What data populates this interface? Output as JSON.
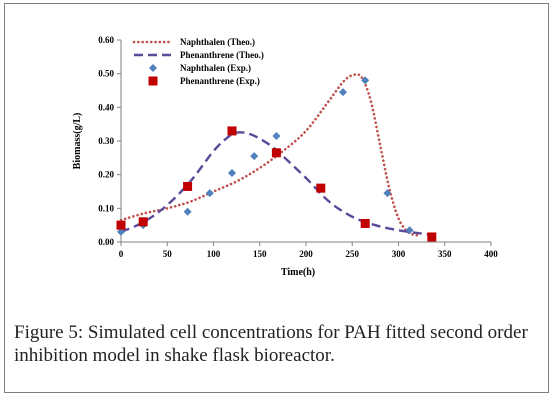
{
  "chart_data": {
    "type": "line",
    "xlabel": "Time(h)",
    "ylabel": "Biomass(g/L)",
    "xlim": [
      0,
      400
    ],
    "ylim": [
      0,
      0.6
    ],
    "x_ticks": [
      "0",
      "50",
      "100",
      "150",
      "200",
      "250",
      "300",
      "350",
      "400"
    ],
    "y_ticks": [
      "0.00",
      "0.10",
      "0.20",
      "0.30",
      "0.40",
      "0.50",
      "0.60"
    ],
    "grid": false,
    "legend_position": "top-left",
    "series": [
      {
        "name": "Naphthalen (Theo.)",
        "kind": "line",
        "style": "dotted",
        "color": "#c0504d",
        "x": [
          0,
          25,
          50,
          75,
          100,
          125,
          150,
          175,
          200,
          225,
          240,
          250,
          260,
          270,
          280,
          290,
          300,
          310,
          320
        ],
        "y": [
          0.065,
          0.085,
          0.1,
          0.12,
          0.15,
          0.18,
          0.22,
          0.27,
          0.33,
          0.42,
          0.475,
          0.495,
          0.49,
          0.42,
          0.29,
          0.16,
          0.07,
          0.03,
          0.02
        ]
      },
      {
        "name": "Phenanthrene (Theo.)",
        "kind": "line",
        "style": "dashed",
        "color": "#5b4a9a",
        "x": [
          0,
          25,
          50,
          75,
          100,
          115,
          125,
          140,
          160,
          175,
          200,
          225,
          250,
          275,
          300,
          325,
          340
        ],
        "y": [
          0.03,
          0.06,
          0.11,
          0.18,
          0.27,
          0.31,
          0.325,
          0.32,
          0.29,
          0.255,
          0.19,
          0.12,
          0.075,
          0.05,
          0.035,
          0.025,
          0.02
        ]
      },
      {
        "name": "Naphthalen (Exp.)",
        "kind": "scatter",
        "marker": "diamond",
        "color": "#4f81bd",
        "x": [
          0,
          24,
          72,
          96,
          120,
          144,
          168,
          240,
          264,
          288,
          312
        ],
        "y": [
          0.03,
          0.05,
          0.09,
          0.145,
          0.205,
          0.255,
          0.315,
          0.445,
          0.48,
          0.145,
          0.035
        ]
      },
      {
        "name": "Phenanthrene (Exp.)",
        "kind": "scatter",
        "marker": "square",
        "color": "#c00000",
        "x": [
          0,
          24,
          72,
          120,
          168,
          216,
          264,
          336
        ],
        "y": [
          0.05,
          0.06,
          0.165,
          0.33,
          0.265,
          0.16,
          0.055,
          0.015
        ]
      }
    ]
  },
  "caption": {
    "label": "Figure 5:",
    "text": " Simulated cell concentrations for PAH fitted second order inhibition model in shake flask bioreactor."
  }
}
